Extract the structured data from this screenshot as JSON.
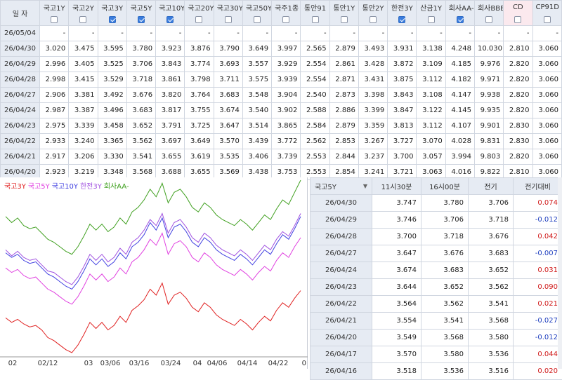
{
  "top_table": {
    "date_header": "일  자",
    "columns": [
      {
        "label": "국고1Y",
        "checked": false
      },
      {
        "label": "국고2Y",
        "checked": false
      },
      {
        "label": "국고3Y",
        "checked": true
      },
      {
        "label": "국고5Y",
        "checked": true
      },
      {
        "label": "국고10Y",
        "checked": true
      },
      {
        "label": "국고20Y",
        "checked": false
      },
      {
        "label": "국고30Y",
        "checked": false
      },
      {
        "label": "국고50Y",
        "checked": false
      },
      {
        "label": "국주1종",
        "checked": false
      },
      {
        "label": "통안91",
        "checked": false
      },
      {
        "label": "통안1Y",
        "checked": false
      },
      {
        "label": "통안2Y",
        "checked": false
      },
      {
        "label": "한전3Y",
        "checked": true
      },
      {
        "label": "산금1Y",
        "checked": false
      },
      {
        "label": "회사AA-",
        "checked": true
      },
      {
        "label": "회사BBB-",
        "checked": false
      },
      {
        "label": "CD",
        "checked": false
      },
      {
        "label": "CP91D",
        "checked": false
      }
    ],
    "rows": [
      {
        "date": "26/05/04",
        "values": [
          "-",
          "-",
          "-",
          "-",
          "-",
          "-",
          "-",
          "-",
          "-",
          "-",
          "-",
          "-",
          "-",
          "-",
          "-",
          "-",
          "-",
          "-"
        ]
      },
      {
        "date": "26/04/30",
        "values": [
          "3.020",
          "3.475",
          "3.595",
          "3.780",
          "3.923",
          "3.876",
          "3.790",
          "3.649",
          "3.997",
          "2.565",
          "2.879",
          "3.493",
          "3.931",
          "3.138",
          "4.248",
          "10.030",
          "2.810",
          "3.060"
        ]
      },
      {
        "date": "26/04/29",
        "values": [
          "2.996",
          "3.405",
          "3.525",
          "3.706",
          "3.843",
          "3.774",
          "3.693",
          "3.557",
          "3.929",
          "2.554",
          "2.861",
          "3.428",
          "3.872",
          "3.109",
          "4.185",
          "9.976",
          "2.820",
          "3.060"
        ]
      },
      {
        "date": "26/04/28",
        "values": [
          "2.998",
          "3.415",
          "3.529",
          "3.718",
          "3.861",
          "3.798",
          "3.711",
          "3.575",
          "3.939",
          "2.554",
          "2.871",
          "3.431",
          "3.875",
          "3.112",
          "4.182",
          "9.971",
          "2.820",
          "3.060"
        ]
      },
      {
        "date": "26/04/27",
        "values": [
          "2.906",
          "3.381",
          "3.492",
          "3.676",
          "3.820",
          "3.764",
          "3.683",
          "3.548",
          "3.904",
          "2.540",
          "2.873",
          "3.398",
          "3.843",
          "3.108",
          "4.147",
          "9.938",
          "2.820",
          "3.060"
        ]
      },
      {
        "date": "26/04/24",
        "values": [
          "2.987",
          "3.387",
          "3.496",
          "3.683",
          "3.817",
          "3.755",
          "3.674",
          "3.540",
          "3.902",
          "2.588",
          "2.886",
          "3.399",
          "3.847",
          "3.122",
          "4.145",
          "9.935",
          "2.820",
          "3.060"
        ]
      },
      {
        "date": "26/04/23",
        "values": [
          "2.975",
          "3.339",
          "3.458",
          "3.652",
          "3.791",
          "3.725",
          "3.647",
          "3.514",
          "3.865",
          "2.584",
          "2.879",
          "3.359",
          "3.813",
          "3.112",
          "4.107",
          "9.901",
          "2.830",
          "3.060"
        ]
      },
      {
        "date": "26/04/22",
        "values": [
          "2.933",
          "3.240",
          "3.365",
          "3.562",
          "3.697",
          "3.649",
          "3.570",
          "3.439",
          "3.772",
          "2.562",
          "2.853",
          "3.267",
          "3.727",
          "3.070",
          "4.028",
          "9.831",
          "2.830",
          "3.060"
        ]
      },
      {
        "date": "26/04/21",
        "values": [
          "2.917",
          "3.206",
          "3.330",
          "3.541",
          "3.655",
          "3.619",
          "3.535",
          "3.406",
          "3.739",
          "2.553",
          "2.844",
          "3.237",
          "3.700",
          "3.057",
          "3.994",
          "9.803",
          "2.820",
          "3.060"
        ]
      },
      {
        "date": "26/04/20",
        "values": [
          "2.923",
          "3.219",
          "3.348",
          "3.568",
          "3.688",
          "3.655",
          "3.569",
          "3.438",
          "3.753",
          "2.553",
          "2.854",
          "3.241",
          "3.721",
          "3.063",
          "4.016",
          "9.822",
          "2.810",
          "3.060"
        ]
      }
    ]
  },
  "chart_data": {
    "type": "line",
    "title": "",
    "xlabel": "",
    "ylabel": "",
    "x_tick_labels": [
      "02",
      "02/12",
      "03",
      "03/06",
      "03/16",
      "03/24",
      "04",
      "04/06",
      "04/14",
      "04/22",
      "0"
    ],
    "legend_placement": "top-left",
    "grid": false,
    "series": [
      {
        "name": "국고3Y",
        "color": "#e02020",
        "values": [
          0.23,
          0.2,
          0.22,
          0.19,
          0.17,
          0.18,
          0.15,
          0.1,
          0.08,
          0.05,
          0.02,
          0.0,
          0.05,
          0.12,
          0.2,
          0.16,
          0.2,
          0.15,
          0.18,
          0.24,
          0.2,
          0.28,
          0.31,
          0.35,
          0.42,
          0.38,
          0.46,
          0.32,
          0.38,
          0.4,
          0.36,
          0.3,
          0.27,
          0.33,
          0.3,
          0.25,
          0.22,
          0.2,
          0.18,
          0.22,
          0.19,
          0.15,
          0.2,
          0.24,
          0.21,
          0.28,
          0.33,
          0.3,
          0.36,
          0.41
        ]
      },
      {
        "name": "국고5Y",
        "color": "#e040e0",
        "values": [
          0.56,
          0.53,
          0.55,
          0.51,
          0.49,
          0.5,
          0.46,
          0.42,
          0.4,
          0.37,
          0.34,
          0.32,
          0.37,
          0.44,
          0.52,
          0.48,
          0.52,
          0.47,
          0.5,
          0.56,
          0.52,
          0.6,
          0.63,
          0.68,
          0.75,
          0.71,
          0.79,
          0.65,
          0.72,
          0.74,
          0.7,
          0.63,
          0.6,
          0.66,
          0.63,
          0.58,
          0.55,
          0.53,
          0.51,
          0.55,
          0.52,
          0.48,
          0.53,
          0.57,
          0.54,
          0.61,
          0.66,
          0.63,
          0.7,
          0.76
        ]
      },
      {
        "name": "국고10Y",
        "color": "#4040e0",
        "values": [
          0.66,
          0.63,
          0.65,
          0.61,
          0.59,
          0.6,
          0.56,
          0.52,
          0.5,
          0.47,
          0.44,
          0.42,
          0.47,
          0.54,
          0.62,
          0.58,
          0.62,
          0.57,
          0.6,
          0.66,
          0.62,
          0.7,
          0.73,
          0.78,
          0.86,
          0.81,
          0.89,
          0.76,
          0.83,
          0.85,
          0.8,
          0.73,
          0.7,
          0.76,
          0.73,
          0.68,
          0.65,
          0.63,
          0.61,
          0.65,
          0.62,
          0.58,
          0.63,
          0.68,
          0.65,
          0.72,
          0.78,
          0.75,
          0.82,
          0.9
        ]
      },
      {
        "name": "한전3Y",
        "color": "#a050e0",
        "values": [
          0.68,
          0.64,
          0.67,
          0.63,
          0.61,
          0.62,
          0.58,
          0.54,
          0.53,
          0.5,
          0.47,
          0.45,
          0.5,
          0.57,
          0.65,
          0.61,
          0.65,
          0.6,
          0.63,
          0.69,
          0.65,
          0.73,
          0.76,
          0.81,
          0.88,
          0.84,
          0.92,
          0.79,
          0.86,
          0.88,
          0.83,
          0.76,
          0.73,
          0.79,
          0.76,
          0.71,
          0.68,
          0.66,
          0.64,
          0.68,
          0.65,
          0.61,
          0.66,
          0.71,
          0.68,
          0.75,
          0.8,
          0.77,
          0.84,
          0.92
        ]
      },
      {
        "name": "회사AA-",
        "color": "#40a020",
        "values": [
          0.9,
          0.86,
          0.89,
          0.84,
          0.82,
          0.83,
          0.79,
          0.75,
          0.73,
          0.7,
          0.67,
          0.65,
          0.7,
          0.77,
          0.85,
          0.81,
          0.85,
          0.8,
          0.83,
          0.89,
          0.85,
          0.93,
          0.96,
          1.01,
          1.08,
          1.03,
          1.12,
          0.99,
          1.06,
          1.08,
          1.03,
          0.96,
          0.93,
          0.99,
          0.96,
          0.91,
          0.88,
          0.86,
          0.84,
          0.88,
          0.85,
          0.81,
          0.86,
          0.91,
          0.88,
          0.95,
          1.01,
          0.98,
          1.06,
          1.14
        ]
      }
    ]
  },
  "side_table": {
    "selector_label": "국고5Y",
    "headers": [
      "11시30분",
      "16시00분",
      "전기",
      "전기대비"
    ],
    "rows": [
      {
        "date": "26/04/30",
        "v1": "3.747",
        "v2": "3.780",
        "v3": "3.706",
        "diff": "0.074",
        "sign": "pos"
      },
      {
        "date": "26/04/29",
        "v1": "3.746",
        "v2": "3.706",
        "v3": "3.718",
        "diff": "-0.012",
        "sign": "neg"
      },
      {
        "date": "26/04/28",
        "v1": "3.700",
        "v2": "3.718",
        "v3": "3.676",
        "diff": "0.042",
        "sign": "pos"
      },
      {
        "date": "26/04/27",
        "v1": "3.647",
        "v2": "3.676",
        "v3": "3.683",
        "diff": "-0.007",
        "sign": "neg"
      },
      {
        "date": "26/04/24",
        "v1": "3.674",
        "v2": "3.683",
        "v3": "3.652",
        "diff": "0.031",
        "sign": "pos"
      },
      {
        "date": "26/04/23",
        "v1": "3.644",
        "v2": "3.652",
        "v3": "3.562",
        "diff": "0.090",
        "sign": "pos"
      },
      {
        "date": "26/04/22",
        "v1": "3.564",
        "v2": "3.562",
        "v3": "3.541",
        "diff": "0.021",
        "sign": "pos"
      },
      {
        "date": "26/04/21",
        "v1": "3.554",
        "v2": "3.541",
        "v3": "3.568",
        "diff": "-0.027",
        "sign": "neg"
      },
      {
        "date": "26/04/20",
        "v1": "3.549",
        "v2": "3.568",
        "v3": "3.580",
        "diff": "-0.012",
        "sign": "neg"
      },
      {
        "date": "26/04/17",
        "v1": "3.570",
        "v2": "3.580",
        "v3": "3.536",
        "diff": "0.044",
        "sign": "pos"
      },
      {
        "date": "26/04/16",
        "v1": "3.518",
        "v2": "3.536",
        "v3": "3.516",
        "diff": "0.020",
        "sign": "pos"
      }
    ]
  }
}
